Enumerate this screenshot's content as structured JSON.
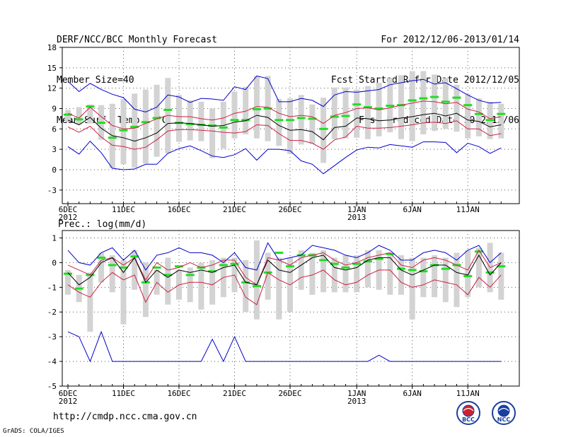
{
  "header": {
    "left": [
      "DERF/NCC/BCC Monthly Forecast",
      "Member Size=40",
      "Mean Surf. Temp.: °C"
    ],
    "right": [
      "For 2012/12/06-2013/01/14",
      "Fcst Started Refer Date 2012/12/05",
      "Fcst Produced Date 2012/12/06"
    ]
  },
  "footer": {
    "url": "http://cmdp.ncc.cma.gov.cn",
    "credit": "GrADS: COLA/IGES"
  },
  "logos": [
    "BCC",
    "NCC"
  ],
  "colors": {
    "box": "#d3d3d3",
    "median": "#22dd22",
    "mean": "#000000",
    "band": "#cc2244",
    "extreme": "#0000cc",
    "grid": "#555555"
  },
  "chart_data": [
    {
      "type": "box",
      "title": "Mean Surf. Temp.: °C",
      "ylim": [
        -5,
        18
      ],
      "yticks": [
        -3,
        0,
        3,
        6,
        9,
        12,
        15,
        18
      ],
      "x_days": 40,
      "xticks": [
        {
          "day": 0,
          "label": "6DEC",
          "sub": "2012"
        },
        {
          "day": 5,
          "label": "11DEC",
          "sub": ""
        },
        {
          "day": 10,
          "label": "16DEC",
          "sub": ""
        },
        {
          "day": 15,
          "label": "21DEC",
          "sub": ""
        },
        {
          "day": 20,
          "label": "26DEC",
          "sub": ""
        },
        {
          "day": 26,
          "label": "1JAN",
          "sub": "2013"
        },
        {
          "day": 31,
          "label": "6JAN",
          "sub": ""
        },
        {
          "day": 36,
          "label": "11JAN",
          "sub": ""
        }
      ],
      "box_low": [
        7.0,
        6.7,
        6.8,
        4.4,
        0.2,
        0.8,
        0.3,
        0.9,
        1.9,
        2.4,
        4.1,
        4.3,
        4.2,
        1.7,
        3.1,
        4.6,
        5.2,
        4.6,
        4.2,
        3.5,
        2.3,
        3.7,
        3.8,
        1.0,
        4.5,
        4.6,
        4.7,
        4.5,
        4.9,
        5.5,
        4.5,
        4.2,
        5.2,
        5.7,
        6.0,
        5.6,
        4.6,
        4.9,
        4.5,
        4.6
      ],
      "box_high": [
        8.8,
        9.2,
        9.6,
        9.5,
        9.7,
        10.4,
        11.2,
        11.8,
        12.5,
        13.5,
        11.0,
        10.2,
        10.0,
        9.0,
        10.0,
        11.5,
        12.2,
        13.8,
        13.8,
        10.4,
        10.5,
        11.0,
        9.6,
        10.6,
        12.1,
        12.1,
        11.8,
        12.3,
        12.8,
        13.5,
        13.9,
        14.5,
        14.5,
        14.0,
        13.5,
        12.5,
        11.1,
        10.5,
        10.0,
        9.7
      ],
      "median": [
        8.1,
        7.4,
        9.3,
        6.9,
        4.7,
        5.8,
        6.3,
        7.0,
        7.6,
        8.8,
        6.9,
        6.7,
        6.6,
        6.5,
        6.2,
        7.3,
        7.3,
        8.9,
        9.0,
        7.3,
        7.3,
        7.6,
        7.5,
        6.0,
        7.8,
        7.9,
        9.6,
        9.2,
        9.0,
        9.4,
        9.5,
        10.2,
        10.5,
        10.7,
        10.0,
        10.6,
        9.5,
        8.2,
        7.3,
        8.2
      ],
      "series": [
        {
          "name": "max",
          "color": "#0000cc",
          "values": [
            13.0,
            11.5,
            12.7,
            11.8,
            11.1,
            10.6,
            8.9,
            8.5,
            9.2,
            11.0,
            10.7,
            9.9,
            10.5,
            10.4,
            10.2,
            12.2,
            11.8,
            13.8,
            13.4,
            10.0,
            10.0,
            10.5,
            10.2,
            9.3,
            11.0,
            11.5,
            11.4,
            11.6,
            11.8,
            12.5,
            12.8,
            13.1,
            13.3,
            12.6,
            12.8,
            11.9,
            11.0,
            10.2,
            9.8,
            9.9
          ]
        },
        {
          "name": "upper",
          "color": "#cc2244",
          "values": [
            8.3,
            7.6,
            9.2,
            7.8,
            6.5,
            6.0,
            6.1,
            6.8,
            7.5,
            8.0,
            7.8,
            7.8,
            7.5,
            7.3,
            7.6,
            8.3,
            8.6,
            9.3,
            9.2,
            8.3,
            7.8,
            8.0,
            7.8,
            6.8,
            8.0,
            8.4,
            9.0,
            9.1,
            8.8,
            9.1,
            9.5,
            9.8,
            10.1,
            10.0,
            9.7,
            9.9,
            8.9,
            8.5,
            7.5,
            7.8
          ]
        },
        {
          "name": "mean",
          "color": "#000000",
          "values": [
            7.3,
            6.6,
            7.7,
            6.1,
            5.0,
            4.7,
            4.2,
            4.7,
            5.4,
            6.8,
            6.9,
            6.8,
            6.6,
            6.4,
            6.5,
            7.0,
            7.2,
            8.0,
            7.7,
            6.5,
            5.8,
            5.9,
            5.6,
            4.4,
            6.2,
            6.4,
            7.6,
            7.5,
            7.2,
            7.3,
            7.6,
            7.8,
            8.1,
            8.3,
            7.9,
            8.3,
            7.3,
            7.1,
            6.3,
            6.6
          ]
        },
        {
          "name": "lower",
          "color": "#cc2244",
          "values": [
            6.3,
            5.5,
            6.4,
            4.8,
            3.6,
            3.4,
            3.0,
            3.3,
            4.4,
            5.7,
            5.9,
            5.9,
            5.8,
            5.7,
            5.5,
            5.4,
            5.6,
            6.6,
            6.5,
            5.3,
            4.3,
            4.3,
            3.9,
            3.0,
            4.4,
            4.8,
            6.4,
            6.1,
            6.1,
            6.2,
            6.4,
            6.6,
            6.9,
            7.0,
            6.8,
            7.2,
            6.0,
            6.0,
            5.0,
            5.3
          ]
        },
        {
          "name": "min",
          "color": "#0000cc",
          "values": [
            3.4,
            2.3,
            4.2,
            2.5,
            0.2,
            0.0,
            0.1,
            0.8,
            0.8,
            2.4,
            3.1,
            3.5,
            2.8,
            2.0,
            1.8,
            2.2,
            3.1,
            1.4,
            3.0,
            3.0,
            2.8,
            1.3,
            0.8,
            -0.6,
            0.6,
            1.8,
            2.9,
            3.3,
            3.2,
            3.7,
            3.5,
            3.3,
            4.1,
            4.1,
            4.0,
            2.5,
            3.9,
            3.4,
            2.4,
            3.2
          ]
        }
      ]
    },
    {
      "type": "box",
      "title": "Prec.: log(mm/d)",
      "ylim": [
        -5,
        1.3
      ],
      "yticks": [
        -5,
        -4,
        -3,
        -2,
        -1,
        0,
        1
      ],
      "x_days": 40,
      "xticks": [
        {
          "day": 0,
          "label": "6DEC",
          "sub": "2012"
        },
        {
          "day": 5,
          "label": "11DEC",
          "sub": ""
        },
        {
          "day": 10,
          "label": "16DEC",
          "sub": ""
        },
        {
          "day": 15,
          "label": "21DEC",
          "sub": ""
        },
        {
          "day": 20,
          "label": "26DEC",
          "sub": ""
        },
        {
          "day": 26,
          "label": "1JAN",
          "sub": "2013"
        },
        {
          "day": 31,
          "label": "6JAN",
          "sub": ""
        },
        {
          "day": 36,
          "label": "11JAN",
          "sub": ""
        }
      ],
      "box_low": [
        -1.3,
        -1.6,
        -2.8,
        -0.8,
        -1.2,
        -2.5,
        -1.1,
        -2.2,
        -1.3,
        -1.7,
        -1.5,
        -1.6,
        -1.9,
        -1.7,
        -1.4,
        -1.2,
        -2.0,
        -2.3,
        -1.5,
        -2.3,
        -2.0,
        -1.1,
        -1.3,
        -1.2,
        -1.2,
        -1.2,
        -1.2,
        -1.0,
        -1.1,
        -1.3,
        -1.3,
        -2.3,
        -1.4,
        -1.4,
        -1.6,
        -1.8,
        -1.4,
        -1.0,
        -1.2,
        -1.5
      ],
      "box_high": [
        -0.3,
        -0.5,
        -0.4,
        0.4,
        0.3,
        0.1,
        0.5,
        0.0,
        -0.3,
        0.2,
        -0.3,
        -0.2,
        0.0,
        0.1,
        0.2,
        0.2,
        0.1,
        0.9,
        0.4,
        0.2,
        0.2,
        0.5,
        0.4,
        0.5,
        0.2,
        0.3,
        0.3,
        0.5,
        0.5,
        0.4,
        0.3,
        0.2,
        0.2,
        0.3,
        0.2,
        0.4,
        0.5,
        0.6,
        0.8,
        0.4
      ],
      "median": [
        -0.45,
        -1.05,
        -0.5,
        0.2,
        -0.1,
        -0.2,
        0.25,
        -0.8,
        -0.2,
        -0.5,
        -0.15,
        -0.5,
        -0.2,
        -0.35,
        -0.1,
        -0.05,
        -0.8,
        -0.95,
        -0.4,
        0.4,
        -0.15,
        0.3,
        0.3,
        0.1,
        -0.05,
        -0.2,
        -0.05,
        0.05,
        0.15,
        0.35,
        -0.25,
        -0.3,
        -0.35,
        -0.1,
        -0.25,
        -0.1,
        -0.55,
        0.45,
        -0.4,
        -0.15
      ],
      "series": [
        {
          "name": "max",
          "color": "#0000cc",
          "values": [
            0.5,
            0.0,
            -0.1,
            0.4,
            0.6,
            0.1,
            0.5,
            -0.3,
            0.3,
            0.4,
            0.6,
            0.4,
            0.4,
            0.3,
            0.0,
            0.4,
            -0.2,
            -0.3,
            0.8,
            0.1,
            0.2,
            0.3,
            0.7,
            0.6,
            0.5,
            0.3,
            0.2,
            0.4,
            0.7,
            0.5,
            0.1,
            0.1,
            0.4,
            0.5,
            0.4,
            0.1,
            0.5,
            0.7,
            0.0,
            0.4
          ]
        },
        {
          "name": "upper",
          "color": "#cc2244",
          "values": [
            -0.1,
            -0.3,
            -0.5,
            0.1,
            0.2,
            -0.1,
            0.2,
            -0.7,
            0.0,
            -0.3,
            -0.2,
            0.0,
            -0.2,
            -0.1,
            0.1,
            0.1,
            -0.6,
            -0.9,
            0.2,
            0.1,
            -0.1,
            0.2,
            0.3,
            0.4,
            0.1,
            -0.1,
            0.0,
            0.2,
            0.3,
            0.4,
            -0.1,
            -0.2,
            0.1,
            0.2,
            0.1,
            -0.1,
            -0.3,
            0.5,
            -0.2,
            0.0
          ]
        },
        {
          "name": "mean",
          "color": "#000000",
          "values": [
            -0.4,
            -0.9,
            -0.6,
            0.0,
            0.2,
            -0.4,
            0.2,
            -0.8,
            -0.3,
            -0.6,
            -0.3,
            -0.4,
            -0.3,
            -0.4,
            -0.2,
            -0.1,
            -0.8,
            -0.9,
            0.1,
            -0.3,
            -0.4,
            -0.1,
            0.2,
            0.3,
            -0.2,
            -0.3,
            -0.2,
            0.1,
            0.2,
            0.2,
            -0.3,
            -0.5,
            -0.3,
            -0.1,
            -0.1,
            -0.4,
            -0.5,
            0.3,
            -0.5,
            0.0
          ]
        },
        {
          "name": "lower",
          "color": "#cc2244",
          "values": [
            -0.9,
            -1.2,
            -1.4,
            -0.8,
            -0.4,
            -0.7,
            -0.5,
            -1.6,
            -0.8,
            -1.2,
            -0.9,
            -0.8,
            -0.8,
            -0.9,
            -0.6,
            -0.5,
            -1.4,
            -1.7,
            -0.4,
            -0.7,
            -0.9,
            -0.6,
            -0.5,
            -0.3,
            -0.7,
            -0.9,
            -0.8,
            -0.5,
            -0.3,
            -0.3,
            -0.8,
            -1.0,
            -0.9,
            -0.7,
            -0.8,
            -0.9,
            -1.3,
            -0.6,
            -1.0,
            -0.5
          ]
        },
        {
          "name": "min",
          "color": "#0000cc",
          "values": [
            -2.8,
            -3.0,
            -4.0,
            -2.8,
            -4.0,
            -4.0,
            -4.0,
            -4.0,
            -4.0,
            -4.0,
            -4.0,
            -4.0,
            -4.0,
            -3.1,
            -4.0,
            -3.0,
            -4.0,
            -4.0,
            -4.0,
            -4.0,
            -4.0,
            -4.0,
            -4.0,
            -4.0,
            -4.0,
            -4.0,
            -4.0,
            -4.0,
            -3.75,
            -4.0,
            -4.0,
            -4.0,
            -4.0,
            -4.0,
            -4.0,
            -4.0,
            -4.0,
            -4.0,
            -4.0,
            -4.0
          ]
        }
      ]
    }
  ]
}
